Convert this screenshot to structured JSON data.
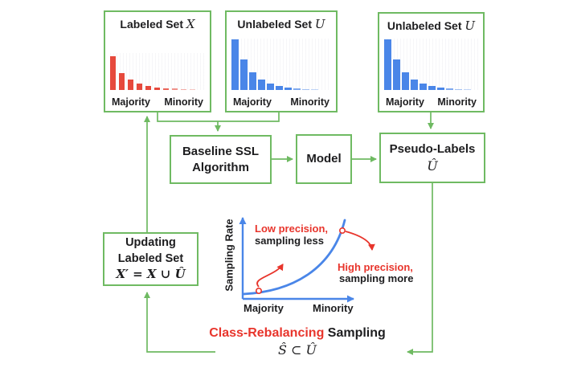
{
  "colors": {
    "green_line": "#6fba62",
    "red_bar": "#e6493c",
    "blue_bar": "#4a86e8",
    "red_text": "#e8352c",
    "text": "#1d1d1f"
  },
  "boxes": {
    "labeled_set": {
      "title": "Labeled Set",
      "symbol": "X",
      "x_left": "Majority",
      "x_right": "Minority",
      "bars": {
        "heights": [
          42,
          21,
          13,
          8,
          5,
          3.5,
          2.5,
          2,
          1.5,
          1
        ],
        "opacities": [
          1,
          1,
          1,
          1,
          1,
          1,
          0.85,
          0.6,
          0.45,
          0.3
        ],
        "color": "#e6493c"
      }
    },
    "unlabeled_set_left": {
      "title": "Unlabeled Set",
      "symbol": "U",
      "x_left": "Majority",
      "x_right": "Minority",
      "bars": {
        "heights": [
          63,
          38,
          22,
          13,
          8,
          5,
          3,
          2,
          1.5,
          1
        ],
        "opacities": [
          1,
          1,
          1,
          1,
          1,
          1,
          1,
          0.7,
          0.5,
          0.35
        ],
        "color": "#4a86e8"
      }
    },
    "unlabeled_set_right": {
      "title": "Unlabeled Set",
      "symbol": "U",
      "x_left": "Majority",
      "x_right": "Minority",
      "bars": {
        "heights": [
          63,
          38,
          22,
          13,
          8,
          5,
          3,
          2,
          1.5,
          1
        ],
        "opacities": [
          1,
          1,
          1,
          1,
          1,
          1,
          1,
          0.7,
          0.5,
          0.35
        ],
        "color": "#4a86e8"
      }
    },
    "baseline_ssl": {
      "line1": "Baseline SSL",
      "line2": "Algorithm"
    },
    "model": {
      "label": "Model"
    },
    "pseudo_labels": {
      "label": "Pseudo-Labels",
      "symbol": "Û"
    },
    "updating": {
      "line1": "Updating",
      "line2": "Labeled Set",
      "formula": "X′ = X ∪ Û"
    }
  },
  "plot": {
    "y_label": "Sampling Rate",
    "x_left": "Majority",
    "x_right": "Minority",
    "low_red": "Low precision,",
    "low_black": "sampling less",
    "high_red": "High precision,",
    "high_black": "sampling more"
  },
  "footer": {
    "red": "Class-Rebalancing",
    "black": " Sampling",
    "formula": "Ŝ ⊂ Û"
  },
  "chart_data": [
    {
      "type": "bar",
      "title": "Labeled Set X",
      "xlabel": "classes: Majority → Minority",
      "values": [
        42,
        21,
        13,
        8,
        5,
        3.5,
        2.5,
        2,
        1.5,
        1
      ],
      "color": "#e6493c"
    },
    {
      "type": "bar",
      "title": "Unlabeled Set U (input)",
      "xlabel": "classes: Majority → Minority",
      "values": [
        63,
        38,
        22,
        13,
        8,
        5,
        3,
        2,
        1.5,
        1
      ],
      "color": "#4a86e8"
    },
    {
      "type": "bar",
      "title": "Unlabeled Set U (pseudo-labeling)",
      "xlabel": "classes: Majority → Minority",
      "values": [
        63,
        38,
        22,
        13,
        8,
        5,
        3,
        2,
        1.5,
        1
      ],
      "color": "#4a86e8"
    },
    {
      "type": "line",
      "title": "Class-rebalancing sampling rate curve",
      "xlabel": "Majority → Minority",
      "ylabel": "Sampling Rate",
      "x": [
        0,
        1
      ],
      "y": [
        "low sampling rate at majority",
        "high sampling rate at minority"
      ],
      "shape": "monotonically increasing, exponential-like",
      "annotations": [
        "Low precision, sampling less (majority end)",
        "High precision, sampling more (minority end)"
      ]
    }
  ]
}
